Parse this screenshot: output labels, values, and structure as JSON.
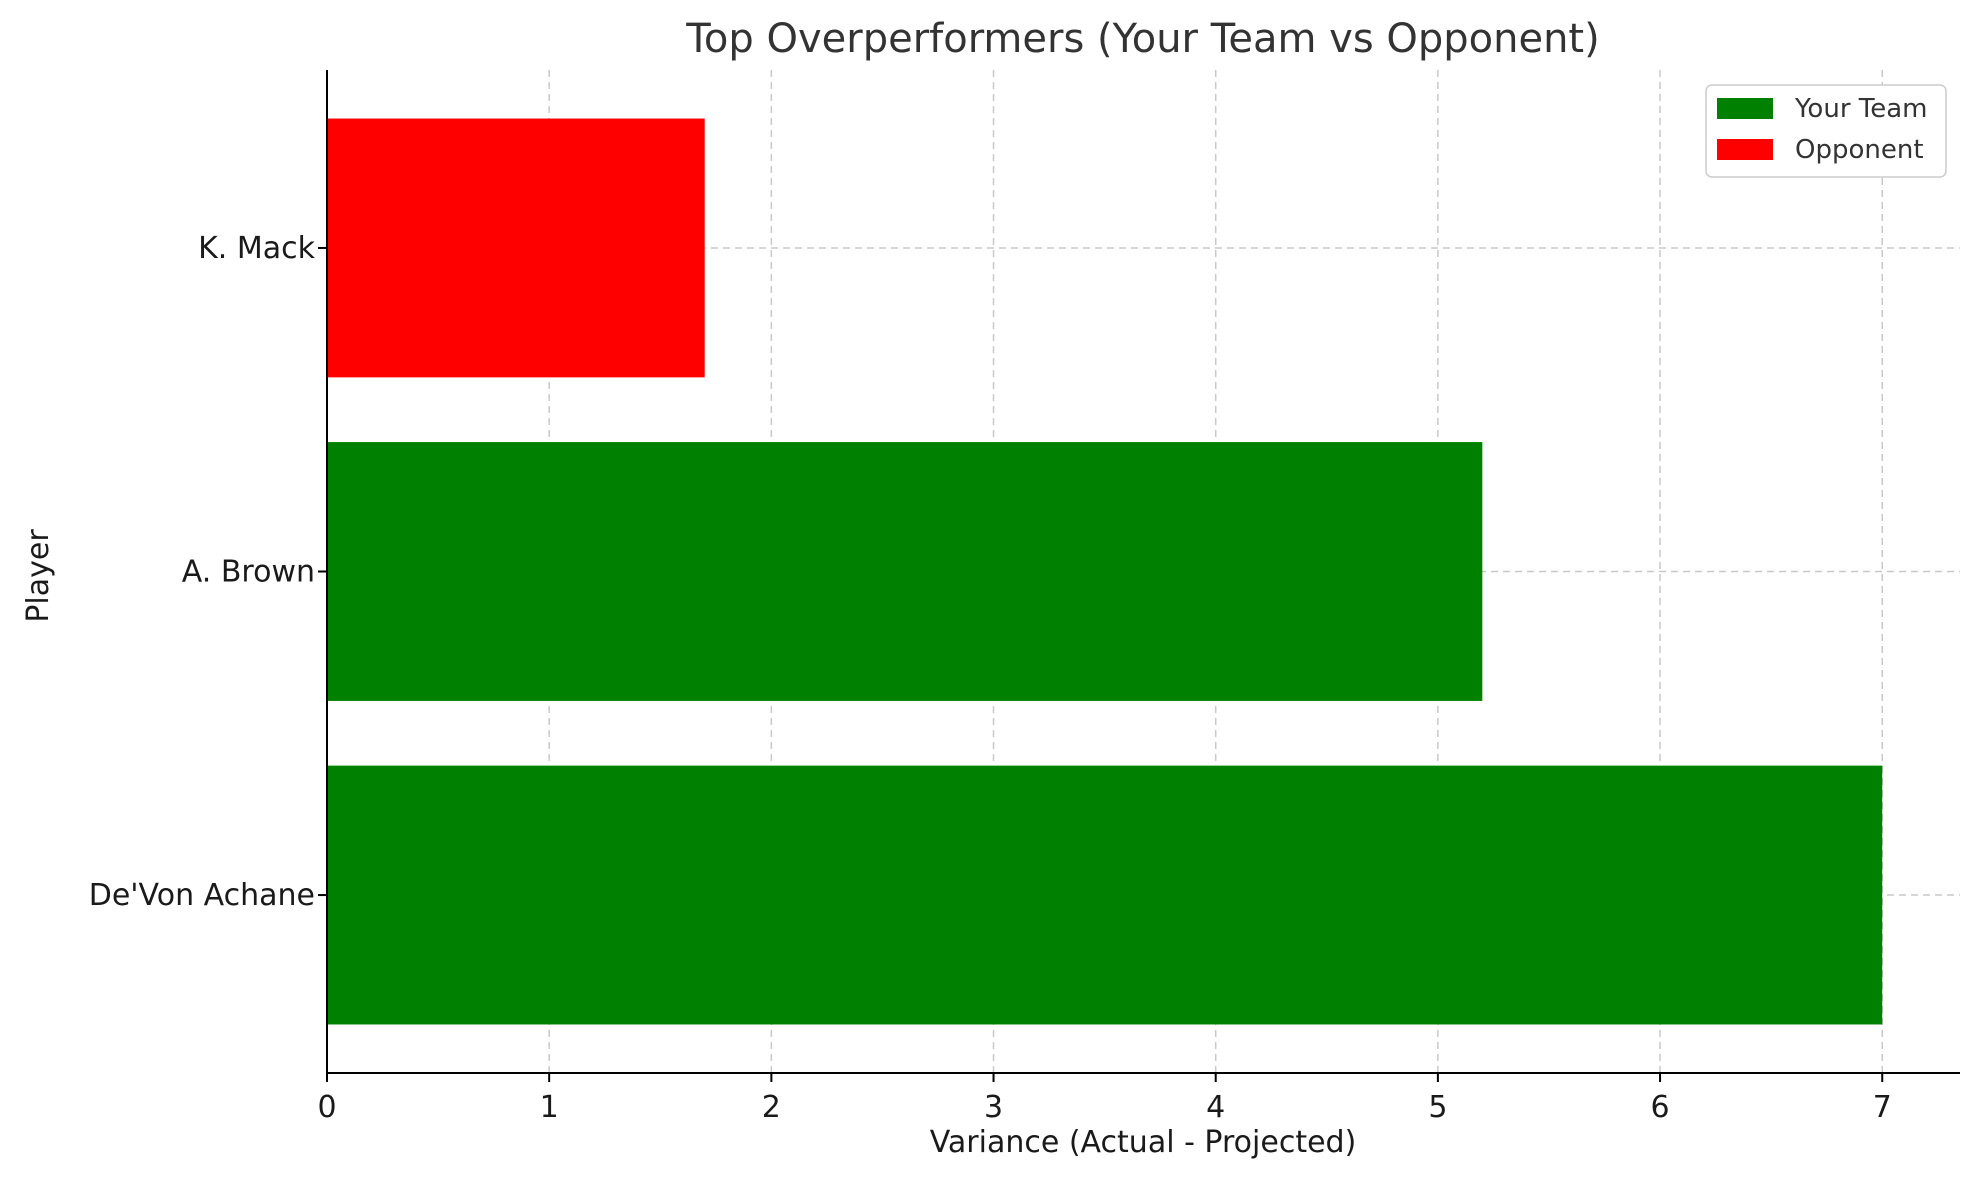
{
  "chart_data": {
    "type": "bar",
    "orientation": "horizontal",
    "title": "Top Overperformers (Your Team vs Opponent)",
    "xlabel": "Variance (Actual - Projected)",
    "ylabel": "Player",
    "xlim": [
      0,
      7.35
    ],
    "xticks": [
      0,
      1,
      2,
      3,
      4,
      5,
      6,
      7
    ],
    "grid": true,
    "legend_position": "top-right",
    "categories": [
      "De'Von Achane",
      "A. Brown",
      "K. Mack"
    ],
    "values": [
      7.0,
      5.2,
      1.7
    ],
    "groups": [
      "Your Team",
      "Your Team",
      "Opponent"
    ],
    "legend": [
      {
        "label": "Your Team",
        "color": "#008000"
      },
      {
        "label": "Opponent",
        "color": "#ff0000"
      }
    ]
  }
}
